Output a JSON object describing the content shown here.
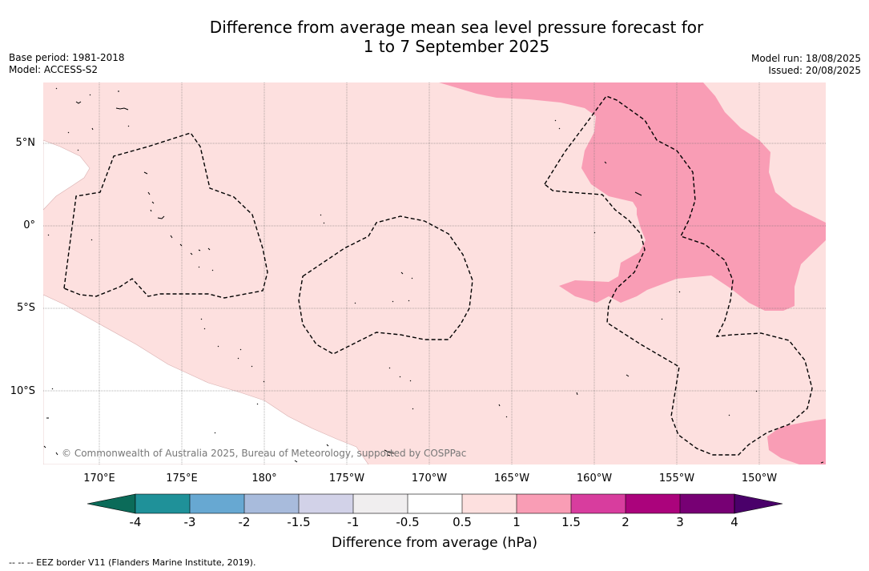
{
  "title": {
    "line1": "Difference from average mean sea level pressure forecast for",
    "line2": "1 to 7 September 2025"
  },
  "meta": {
    "base_period": "Base period: 1981-2018",
    "model": "Model: ACCESS-S2",
    "model_run": "Model run: 18/08/2025",
    "issued": "Issued: 20/08/2025"
  },
  "map": {
    "lon_ticks": [
      "170°E",
      "175°E",
      "180°",
      "175°W",
      "170°W",
      "165°W",
      "160°W",
      "155°W",
      "150°W"
    ],
    "lat_ticks": [
      "5°N",
      "0°",
      "5°S",
      "10°S"
    ],
    "copyright": "© Commonwealth of Australia 2025, Bureau of Meteorology, supported by COSPPac",
    "colors": {
      "band_0_5_to_1": "#fde0df",
      "band_1_to_1_5": "#f99db5",
      "land": "#ffffff",
      "eez": "#000000"
    }
  },
  "colorbar": {
    "ticks": [
      "-4",
      "-3",
      "-2",
      "-1.5",
      "-1",
      "-0.5",
      "0.5",
      "1",
      "1.5",
      "2",
      "3",
      "4"
    ],
    "colors": [
      "#0b6b59",
      "#1f9199",
      "#67a8d2",
      "#a8bbdc",
      "#d2d2e8",
      "#f0eeef",
      "#ffffff",
      "#fde0df",
      "#f99db5",
      "#d83d9e",
      "#ab037c",
      "#770074",
      "#4a006a"
    ],
    "label": "Difference from average (hPa)"
  },
  "footer": "--  --  -- EEZ border V11 (Flanders Marine Institute, 2019)."
}
